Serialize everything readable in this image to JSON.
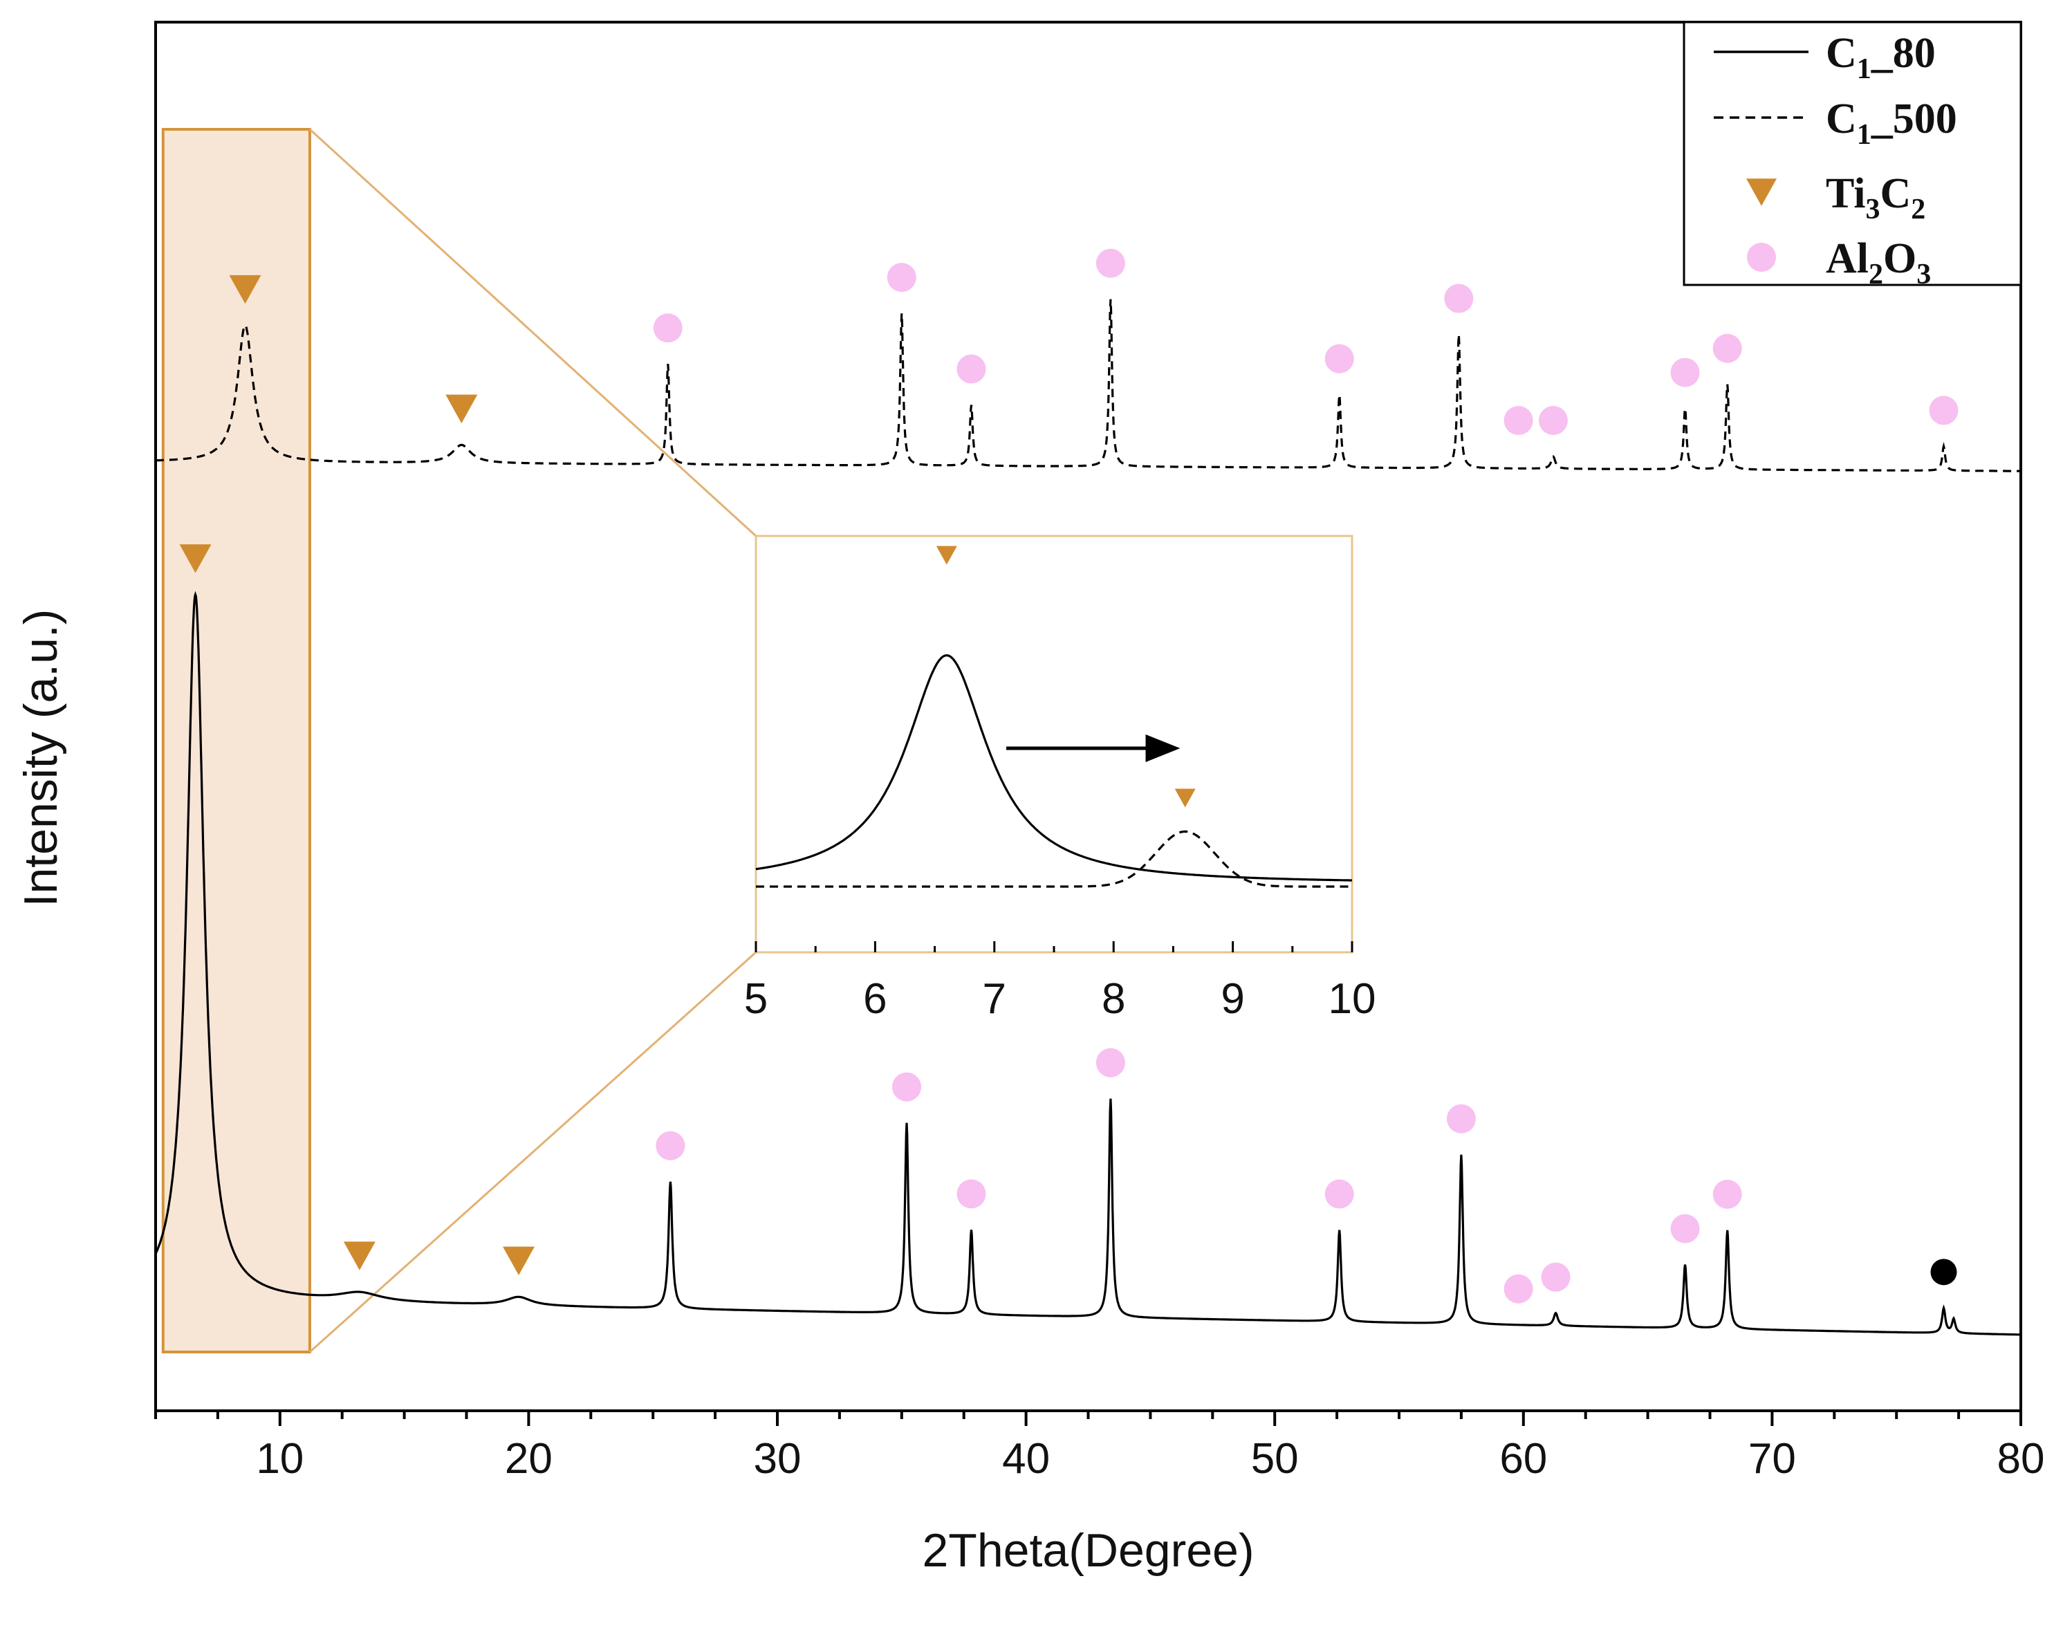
{
  "chart_data": {
    "type": "line",
    "xlabel": "2Theta(Degree)",
    "ylabel": "Intensity (a.u.)",
    "xlim": [
      5,
      80
    ],
    "x_ticks": [
      10,
      20,
      30,
      40,
      50,
      60,
      70,
      80
    ],
    "y_ticks": "none",
    "grid": false,
    "legend_position": "top-right",
    "legend": [
      {
        "key": "c80",
        "base": "C",
        "sub": "1",
        "tail": "_80",
        "style": "solid",
        "color": "#000000"
      },
      {
        "key": "c500",
        "base": "C",
        "sub": "1",
        "tail": "_500",
        "style": "dashed",
        "color": "#000000"
      },
      {
        "key": "ti3c2",
        "parts": [
          {
            "t": "Ti"
          },
          {
            "t": "3",
            "sub": true
          },
          {
            "t": "C"
          },
          {
            "t": "2",
            "sub": true
          }
        ],
        "marker": "down-triangle",
        "color": "#D08A2E"
      },
      {
        "key": "al2o3",
        "parts": [
          {
            "t": "Al"
          },
          {
            "t": "2",
            "sub": true
          },
          {
            "t": "O"
          },
          {
            "t": "3",
            "sub": true
          }
        ],
        "marker": "circle",
        "color": "#F7C0F0"
      }
    ],
    "series": [
      {
        "key": "c80",
        "style": "solid",
        "baseline_start": 0.05,
        "baseline_end": 0.0,
        "peaks": [
          {
            "x": 6.6,
            "h": 1.0,
            "w": 0.42
          },
          {
            "x": 13.2,
            "h": 0.012,
            "w": 1.0
          },
          {
            "x": 19.6,
            "h": 0.012,
            "w": 0.6
          },
          {
            "x": 25.7,
            "h": 0.18,
            "w": 0.09
          },
          {
            "x": 35.2,
            "h": 0.27,
            "w": 0.08
          },
          {
            "x": 37.8,
            "h": 0.12,
            "w": 0.08
          },
          {
            "x": 43.4,
            "h": 0.31,
            "w": 0.08
          },
          {
            "x": 52.6,
            "h": 0.13,
            "w": 0.08
          },
          {
            "x": 57.5,
            "h": 0.24,
            "w": 0.08
          },
          {
            "x": 61.3,
            "h": 0.018,
            "w": 0.1
          },
          {
            "x": 66.5,
            "h": 0.09,
            "w": 0.08
          },
          {
            "x": 68.2,
            "h": 0.14,
            "w": 0.08
          },
          {
            "x": 76.9,
            "h": 0.035,
            "w": 0.08
          },
          {
            "x": 77.3,
            "h": 0.02,
            "w": 0.08
          }
        ]
      },
      {
        "key": "c500",
        "style": "dashed",
        "baseline_start": 0.0,
        "baseline_end": -0.03,
        "peaks": [
          {
            "x": 8.6,
            "h": 0.45,
            "w": 0.38
          },
          {
            "x": 17.3,
            "h": 0.06,
            "w": 0.45
          },
          {
            "x": 25.6,
            "h": 0.33,
            "w": 0.07
          },
          {
            "x": 35.0,
            "h": 0.5,
            "w": 0.07
          },
          {
            "x": 37.8,
            "h": 0.2,
            "w": 0.07
          },
          {
            "x": 43.4,
            "h": 0.55,
            "w": 0.07
          },
          {
            "x": 52.6,
            "h": 0.24,
            "w": 0.07
          },
          {
            "x": 57.4,
            "h": 0.44,
            "w": 0.07
          },
          {
            "x": 61.2,
            "h": 0.04,
            "w": 0.1
          },
          {
            "x": 66.5,
            "h": 0.2,
            "w": 0.07
          },
          {
            "x": 68.2,
            "h": 0.28,
            "w": 0.07
          },
          {
            "x": 76.9,
            "h": 0.08,
            "w": 0.07
          }
        ]
      }
    ],
    "markers": {
      "c80": {
        "ti3c2": [
          6.6,
          13.2,
          19.6
        ],
        "al2o3": [
          25.7,
          35.2,
          37.8,
          43.4,
          52.6,
          57.5,
          59.8,
          61.3,
          66.5,
          68.2
        ],
        "other": [
          76.9
        ]
      },
      "c500": {
        "ti3c2": [
          8.6,
          17.3
        ],
        "al2o3": [
          25.6,
          35.0,
          37.8,
          43.4,
          52.6,
          57.4,
          59.8,
          61.2,
          66.5,
          68.2,
          76.9
        ]
      }
    },
    "inset": {
      "xlim": [
        5,
        10
      ],
      "x_ticks": [
        5,
        6,
        7,
        8,
        9,
        10
      ],
      "highlight_range": [
        5.3,
        11.2
      ],
      "arrow_from": 7.1,
      "arrow_to": 8.5
    }
  }
}
